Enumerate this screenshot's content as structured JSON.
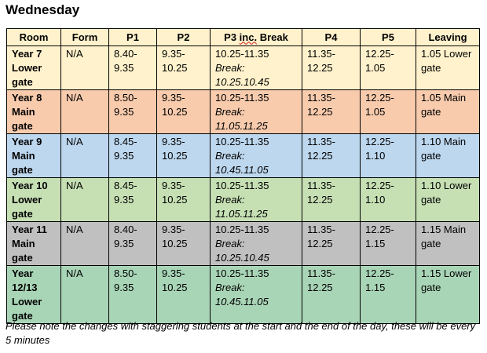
{
  "title": "Wednesday",
  "headers": [
    "Room",
    "Form",
    "P1",
    "P2",
    "P3 inc. Break",
    "P4",
    "P5",
    "Leaving"
  ],
  "header_bg": "#fff2cc",
  "rows": [
    {
      "room": "Year 7 Lower gate",
      "form": "N/A",
      "p1": "8.40-9.35",
      "p2": "9.35-10.25",
      "p3": "10.25-11.35",
      "p3_break": "Break: 10.25.10.45",
      "p4": "11.35-12.25",
      "p5": "12.25-1.05",
      "leaving": "1.05 Lower gate",
      "bg": "#fff2cc"
    },
    {
      "room": "Year 8 Main gate",
      "form": "N/A",
      "p1": "8.50-9.35",
      "p2": "9.35-10.25",
      "p3": "10.25-11.35",
      "p3_break": "Break: 11.05.11.25",
      "p4": "11.35-12.25",
      "p5": "12.25-1.05",
      "leaving": "1.05 Main gate",
      "bg": "#f8cbad"
    },
    {
      "room": "Year 9 Main gate",
      "form": "N/A",
      "p1": "8.45-9.35",
      "p2": "9.35-10.25",
      "p3": "10.25-11.35",
      "p3_break": "Break: 10.45.11.05",
      "p4": "11.35-12.25",
      "p5": "12.25-1.10",
      "leaving": "1.10 Main gate",
      "bg": "#bdd7ee"
    },
    {
      "room": "Year 10 Lower gate",
      "form": "N/A",
      "p1": "8.45-9.35",
      "p2": "9.35-10.25",
      "p3": "10.25-11.35",
      "p3_break": "Break: 11.05.11.25",
      "p4": "11.35-12.25",
      "p5": "12.25-1.10",
      "leaving": "1.10 Lower gate",
      "bg": "#c6e0b4"
    },
    {
      "room": "Year 11 Main gate",
      "form": "N/A",
      "p1": "8.40-9.35",
      "p2": "9.35-10.25",
      "p3": "10.25-11.35",
      "p3_break": "Break: 10.25.10.45",
      "p4": "11.35-12.25",
      "p5": "12.25-1.15",
      "leaving": "1.15 Main gate",
      "bg": "#c0c0c0"
    },
    {
      "room": "Year 12/13 Lower gate",
      "form": "N/A",
      "p1": "8.50-9.35",
      "p2": "9.35-10.25",
      "p3": "10.25-11.35",
      "p3_break": "Break: 10.45.11.05",
      "p4": "11.35-12.25",
      "p5": "12.25-1.15",
      "leaving": "1.15 Lower gate",
      "bg": "#a9d5b7"
    }
  ],
  "note": "Please note the changes with staggering students at the start and the end of the day, these will be every 5 minutes"
}
